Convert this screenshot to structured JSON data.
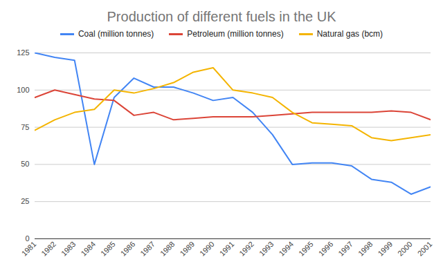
{
  "chart_data": {
    "type": "line",
    "title": "Production of different fuels in the UK",
    "x": [
      1981,
      1982,
      1983,
      1984,
      1985,
      1986,
      1987,
      1988,
      1989,
      1990,
      1991,
      1992,
      1993,
      1994,
      1995,
      1996,
      1997,
      1998,
      1999,
      2000,
      2001
    ],
    "series": [
      {
        "name": "Coal (million tonnes)",
        "color": "#4285f4",
        "values": [
          125,
          122,
          120,
          50,
          95,
          108,
          102,
          102,
          98,
          93,
          95,
          85,
          70,
          50,
          51,
          51,
          49,
          40,
          38,
          30,
          35
        ]
      },
      {
        "name": "Petroleum (million tonnes)",
        "color": "#db4437",
        "values": [
          95,
          100,
          97,
          94,
          93,
          83,
          85,
          80,
          81,
          82,
          82,
          82,
          83,
          84,
          85,
          85,
          85,
          85,
          86,
          85,
          80
        ]
      },
      {
        "name": "Natural gas (bcm)",
        "color": "#f4b400",
        "values": [
          73,
          80,
          85,
          87,
          100,
          98,
          101,
          105,
          112,
          115,
          100,
          98,
          95,
          85,
          78,
          77,
          76,
          68,
          66,
          68,
          70
        ]
      }
    ],
    "xlim": [
      1981,
      2001
    ],
    "xticks": [
      1981,
      1982,
      1983,
      1984,
      1985,
      1986,
      1987,
      1988,
      1989,
      1990,
      1991,
      1992,
      1993,
      1994,
      1995,
      1996,
      1997,
      1998,
      1999,
      2000,
      2001
    ],
    "ylim": [
      0,
      125
    ],
    "yticks": [
      0,
      25,
      50,
      75,
      100,
      125
    ],
    "grid": true,
    "legend": "top"
  }
}
